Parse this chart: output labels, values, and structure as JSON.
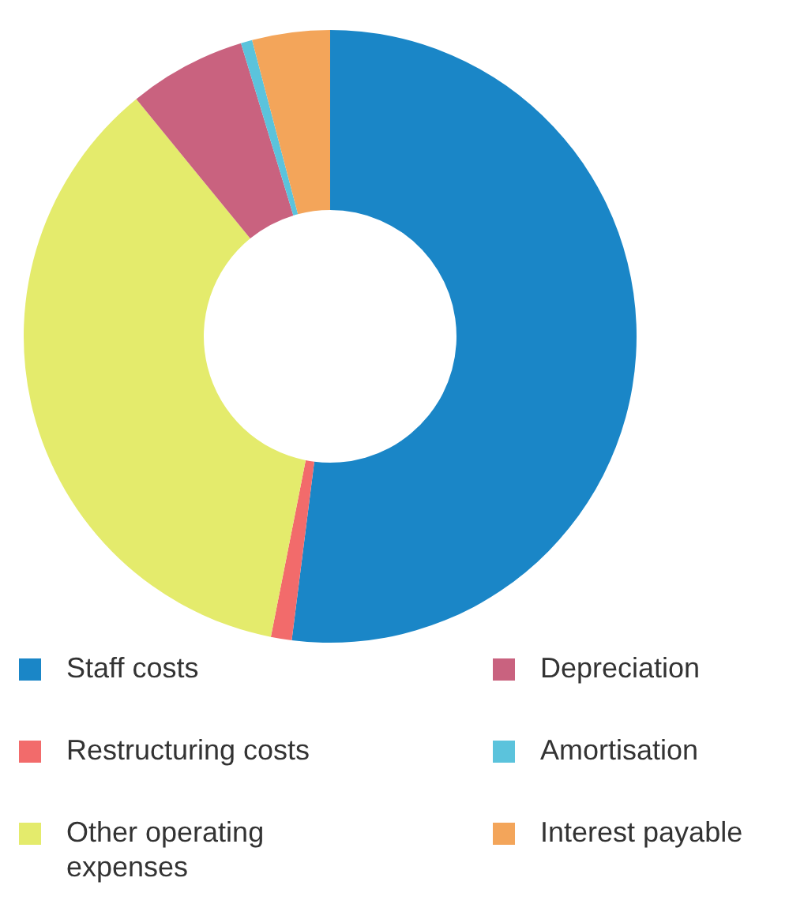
{
  "chart_data": {
    "type": "donut",
    "categories": [
      "Staff costs",
      "Restructuring costs",
      "Other operating expenses",
      "Depreciation",
      "Amortisation",
      "Interest payable"
    ],
    "values": [
      52,
      1.1,
      36,
      6.2,
      0.6,
      4.1
    ],
    "colors": [
      "#1a86c7",
      "#f26b6b",
      "#e4eb6c",
      "#c9627f",
      "#5bc3dc",
      "#f3a55a"
    ],
    "legend": "bottom"
  }
}
